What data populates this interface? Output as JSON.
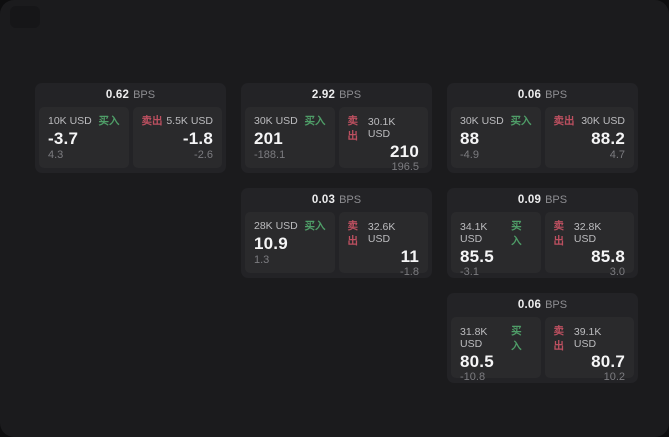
{
  "labels": {
    "buy": "买入",
    "sell": "卖出",
    "bps_unit": "BPS"
  },
  "colors": {
    "panel_background": "#1b1b1d",
    "card_background": "#232326",
    "tile_background": "#2a2a2c",
    "buy_green": "#4f9e68",
    "sell_red": "#bd5060",
    "primary_text": "#f5f5f6",
    "muted_text": "#7c7c80"
  },
  "cards": [
    {
      "bps": "0.62",
      "buy": {
        "amount": "10K USD",
        "price": "-3.7",
        "delta": "4.3"
      },
      "sell": {
        "amount": "5.5K USD",
        "price": "-1.8",
        "delta": "-2.6"
      }
    },
    {
      "bps": "2.92",
      "buy": {
        "amount": "30K USD",
        "price": "201",
        "delta": "-188.1"
      },
      "sell": {
        "amount": "30.1K USD",
        "price": "210",
        "delta": "196.5"
      }
    },
    {
      "bps": "0.06",
      "buy": {
        "amount": "30K USD",
        "price": "88",
        "delta": "-4.9"
      },
      "sell": {
        "amount": "30K USD",
        "price": "88.2",
        "delta": "4.7"
      }
    },
    {
      "bps": "0.03",
      "buy": {
        "amount": "28K USD",
        "price": "10.9",
        "delta": "1.3"
      },
      "sell": {
        "amount": "32.6K USD",
        "price": "11",
        "delta": "-1.8"
      }
    },
    {
      "bps": "0.09",
      "buy": {
        "amount": "34.1K USD",
        "price": "85.5",
        "delta": "-3.1"
      },
      "sell": {
        "amount": "32.8K USD",
        "price": "85.8",
        "delta": "3.0"
      }
    },
    {
      "bps": "0.06",
      "buy": {
        "amount": "31.8K USD",
        "price": "80.5",
        "delta": "-10.8"
      },
      "sell": {
        "amount": "39.1K USD",
        "price": "80.7",
        "delta": "10.2"
      }
    }
  ]
}
